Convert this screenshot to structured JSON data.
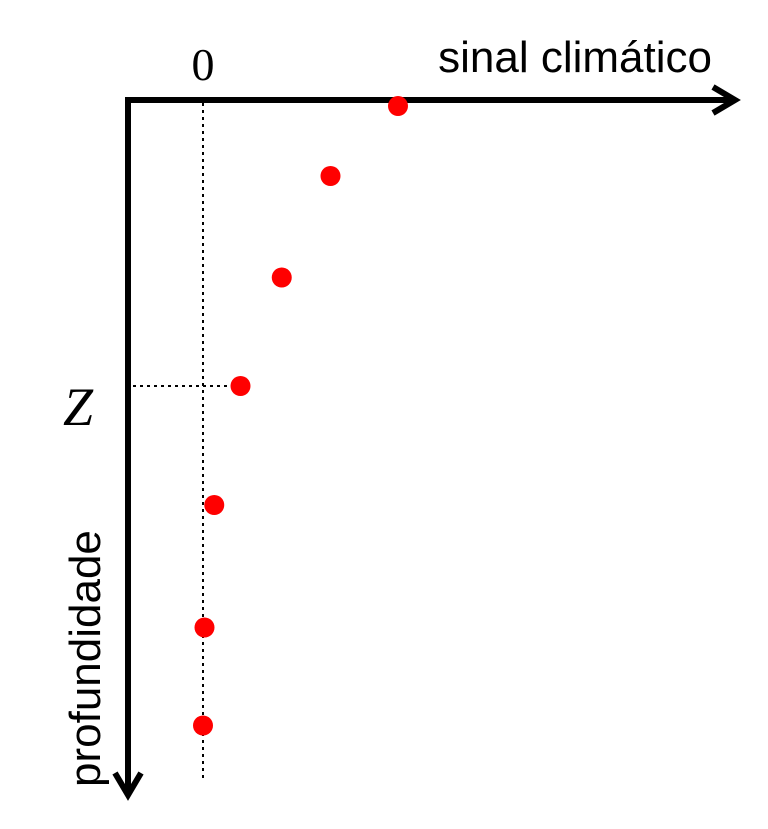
{
  "chart_data": {
    "type": "scatter",
    "title": "",
    "xlabel": "sinal climático",
    "ylabel": "profundidade",
    "x_tick_label": "0",
    "depth_marker_label": "Z",
    "grid": false,
    "legend": "none",
    "marker_color": "#ff0000",
    "axis_color": "#000000",
    "series": [
      {
        "points": [
          {
            "x": 2.6,
            "y": 0.0
          },
          {
            "x": 1.7,
            "y": 1.0
          },
          {
            "x": 1.05,
            "y": 2.45
          },
          {
            "x": 0.5,
            "y": 4.0
          },
          {
            "x": 0.15,
            "y": 5.7
          },
          {
            "x": 0.02,
            "y": 7.45
          },
          {
            "x": 0.0,
            "y": 8.85
          }
        ]
      }
    ],
    "xlim": [
      -1.0,
      7.0
    ],
    "ylim": [
      0,
      9.6
    ],
    "z_marker_y": 4.0
  }
}
